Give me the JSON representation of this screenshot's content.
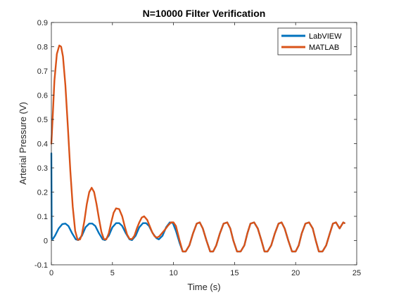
{
  "chart_data": {
    "type": "line",
    "title": "N=10000 Filter Verification",
    "xlabel": "Time (s)",
    "ylabel": "Arterial Pressure (V)",
    "xlim": [
      0,
      25
    ],
    "ylim": [
      -0.1,
      0.9
    ],
    "xticks": [
      "0",
      "5",
      "10",
      "15",
      "20",
      "25"
    ],
    "yticks": [
      "-0.1",
      "0",
      "0.1",
      "0.2",
      "0.3",
      "0.4",
      "0.5",
      "0.6",
      "0.7",
      "0.8",
      "0.9"
    ],
    "grid": false,
    "legend_position": "top-right",
    "series": [
      {
        "name": "LabVIEW",
        "color": "#0072BD",
        "x": [
          0,
          0.03,
          0.06,
          0.1,
          0.3,
          0.6,
          0.9,
          1.15,
          1.4,
          1.7,
          2.0,
          2.2,
          2.5,
          2.8,
          3.1,
          3.35,
          3.6,
          3.9,
          4.2,
          4.4,
          4.7,
          5.0,
          5.3,
          5.55,
          5.8,
          6.1,
          6.4,
          6.6,
          6.9,
          7.2,
          7.5,
          7.75,
          8.0,
          8.3,
          8.6,
          8.8,
          9.1,
          9.4,
          9.7,
          9.95,
          10.2,
          10.5,
          10.75,
          11.0,
          11.3,
          11.6,
          11.9,
          12.15,
          12.4,
          12.7,
          13.0,
          13.25,
          13.5,
          13.8,
          14.1,
          14.4,
          14.65,
          14.9,
          15.2,
          15.5,
          15.8,
          16.05,
          16.3,
          16.6,
          16.9,
          17.2,
          17.45,
          17.7,
          18.0,
          18.3,
          18.6,
          18.85,
          19.1,
          19.4,
          19.7,
          20.0,
          20.25,
          20.5,
          20.8,
          21.1,
          21.4,
          21.65,
          21.9,
          22.2,
          22.5,
          22.8,
          23.05,
          23.3,
          23.6,
          23.9,
          24.0
        ],
        "y": [
          0.36,
          0.01,
          0.005,
          0.005,
          0.02,
          0.05,
          0.068,
          0.07,
          0.06,
          0.03,
          0.005,
          0.002,
          0.02,
          0.055,
          0.07,
          0.07,
          0.06,
          0.03,
          0.005,
          0.002,
          0.02,
          0.055,
          0.072,
          0.072,
          0.06,
          0.03,
          0.005,
          0.002,
          0.02,
          0.055,
          0.072,
          0.072,
          0.06,
          0.03,
          0.01,
          0.005,
          0.02,
          0.055,
          0.075,
          0.072,
          0.04,
          -0.01,
          -0.045,
          -0.045,
          -0.02,
          0.03,
          0.07,
          0.075,
          0.05,
          0.0,
          -0.045,
          -0.045,
          -0.02,
          0.03,
          0.07,
          0.075,
          0.05,
          0.0,
          -0.045,
          -0.045,
          -0.02,
          0.03,
          0.07,
          0.075,
          0.05,
          0.0,
          -0.045,
          -0.045,
          -0.02,
          0.03,
          0.07,
          0.075,
          0.05,
          0.0,
          -0.045,
          -0.045,
          -0.02,
          0.03,
          0.07,
          0.075,
          0.05,
          0.0,
          -0.045,
          -0.045,
          -0.02,
          0.03,
          0.07,
          0.075,
          0.05,
          0.075,
          0.072
        ]
      },
      {
        "name": "MATLAB",
        "color": "#D95319",
        "x": [
          0,
          0.1,
          0.25,
          0.45,
          0.65,
          0.8,
          0.95,
          1.15,
          1.35,
          1.55,
          1.75,
          1.95,
          2.15,
          2.35,
          2.5,
          2.7,
          2.9,
          3.1,
          3.3,
          3.5,
          3.7,
          3.9,
          4.1,
          4.3,
          4.5,
          4.7,
          4.9,
          5.1,
          5.3,
          5.55,
          5.8,
          6.0,
          6.2,
          6.4,
          6.6,
          6.8,
          7.0,
          7.2,
          7.4,
          7.6,
          7.85,
          8.05,
          8.25,
          8.45,
          8.65,
          8.85,
          9.05,
          9.3,
          9.55,
          9.8,
          10.0,
          10.2,
          10.5,
          10.75,
          11.0,
          11.3,
          11.6,
          11.9,
          12.15,
          12.4,
          12.7,
          13.0,
          13.25,
          13.5,
          13.8,
          14.1,
          14.4,
          14.65,
          14.9,
          15.2,
          15.5,
          15.8,
          16.05,
          16.3,
          16.6,
          16.9,
          17.2,
          17.45,
          17.7,
          18.0,
          18.3,
          18.6,
          18.85,
          19.1,
          19.4,
          19.7,
          20.0,
          20.25,
          20.5,
          20.8,
          21.1,
          21.4,
          21.65,
          21.9,
          22.2,
          22.5,
          22.8,
          23.05,
          23.3,
          23.6,
          23.9,
          24.0
        ],
        "y": [
          0.4,
          0.5,
          0.66,
          0.77,
          0.805,
          0.8,
          0.76,
          0.64,
          0.47,
          0.29,
          0.14,
          0.04,
          0.003,
          0.005,
          0.025,
          0.08,
          0.15,
          0.2,
          0.218,
          0.2,
          0.15,
          0.09,
          0.035,
          0.006,
          0.005,
          0.03,
          0.075,
          0.115,
          0.133,
          0.13,
          0.1,
          0.06,
          0.025,
          0.007,
          0.006,
          0.02,
          0.05,
          0.075,
          0.095,
          0.1,
          0.085,
          0.06,
          0.035,
          0.018,
          0.012,
          0.018,
          0.03,
          0.045,
          0.062,
          0.075,
          0.075,
          0.06,
          0.0,
          -0.045,
          -0.045,
          -0.02,
          0.03,
          0.07,
          0.075,
          0.05,
          0.0,
          -0.045,
          -0.045,
          -0.02,
          0.03,
          0.07,
          0.075,
          0.05,
          0.0,
          -0.045,
          -0.045,
          -0.02,
          0.03,
          0.07,
          0.075,
          0.05,
          0.0,
          -0.045,
          -0.045,
          -0.02,
          0.03,
          0.07,
          0.075,
          0.05,
          0.0,
          -0.045,
          -0.045,
          -0.02,
          0.03,
          0.07,
          0.075,
          0.05,
          0.0,
          -0.045,
          -0.045,
          -0.02,
          0.03,
          0.07,
          0.075,
          0.05,
          0.075,
          0.072
        ]
      }
    ]
  }
}
